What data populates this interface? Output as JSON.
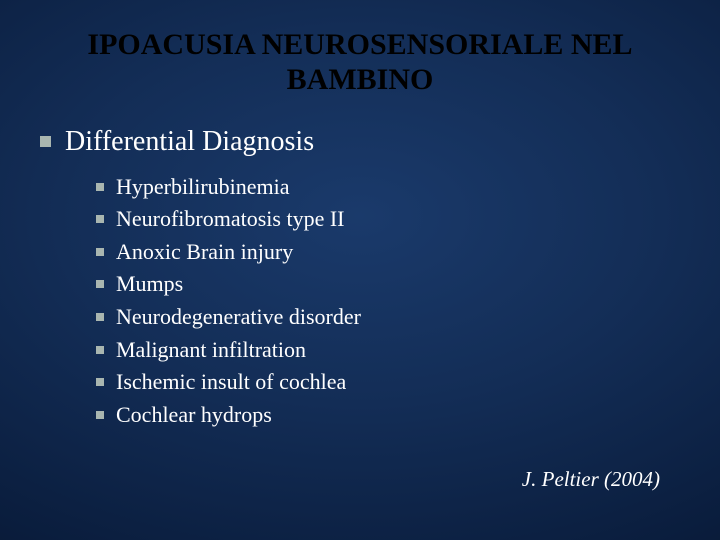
{
  "slide": {
    "title": "IPOACUSIA NEUROSENSORIALE NEL BAMBINO",
    "title_color": "#000000",
    "title_fontsize": 30,
    "background_gradient": {
      "inner": "#1a3a6b",
      "mid": "#132d56",
      "outer": "#0a1d3d",
      "edge": "#050f22"
    },
    "bullet_color": "#a9b6b0",
    "text_color": "#ffffff",
    "font_family": "Times New Roman",
    "heading": {
      "text": "Differential Diagnosis",
      "fontsize": 28
    },
    "items": [
      "Hyperbilirubinemia",
      "Neurofibromatosis type II",
      "Anoxic Brain injury",
      "Mumps",
      "Neurodegenerative disorder",
      "Malignant infiltration",
      "Ischemic insult of cochlea",
      "Cochlear hydrops"
    ],
    "item_fontsize": 22,
    "citation": "J. Peltier (2004)",
    "citation_fontsize": 21
  }
}
